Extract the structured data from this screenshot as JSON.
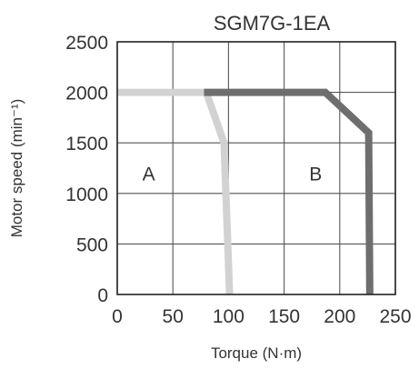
{
  "chart_data": {
    "type": "line",
    "title": "SGM7G-1EA",
    "xlabel": "Torque (N·m)",
    "ylabel": "Motor speed (min⁻¹)",
    "xlim": [
      0,
      250
    ],
    "ylim": [
      0,
      2500
    ],
    "xticks": [
      "0",
      "50",
      "100",
      "150",
      "200",
      "250"
    ],
    "yticks": [
      "0",
      "500",
      "1000",
      "1500",
      "2000",
      "2500"
    ],
    "grid": true,
    "regions": [
      {
        "label": "A",
        "x": 25,
        "y": 1200
      },
      {
        "label": "B",
        "x": 175,
        "y": 1200
      }
    ],
    "series": [
      {
        "color": "#d2d2d2",
        "points": [
          [
            0,
            2000
          ],
          [
            80,
            2000
          ],
          [
            96,
            1500
          ],
          [
            101,
            0
          ]
        ]
      },
      {
        "color": "#6e6e6e",
        "points": [
          [
            78,
            2000
          ],
          [
            187,
            2000
          ],
          [
            226,
            1600
          ],
          [
            227,
            0
          ]
        ]
      }
    ]
  }
}
